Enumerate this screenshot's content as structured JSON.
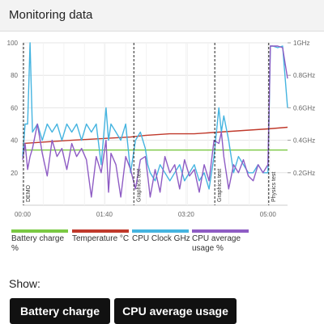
{
  "header": {
    "title": "Monitoring data"
  },
  "chart_data": {
    "type": "line",
    "title": "",
    "x_ticks": [
      "00:00",
      "01:40",
      "03:20",
      "05:00"
    ],
    "y_left_ticks": [
      20,
      40,
      60,
      80,
      100
    ],
    "y_right_ticks": [
      "0.2GHz",
      "0.4GHz",
      "0.6GHz",
      "0.8GHz",
      "1GHz"
    ],
    "ylim_left": [
      0,
      100
    ],
    "ylim_right": [
      0,
      1
    ],
    "grid": true,
    "xlim": [
      0,
      5.4
    ],
    "test_markers": [
      {
        "x": 0.0,
        "label": "DEMO"
      },
      {
        "x": 2.25,
        "label": "Graphics test"
      },
      {
        "x": 3.9,
        "label": "Graphics test"
      },
      {
        "x": 5.0,
        "label": "Physics test"
      }
    ],
    "series": [
      {
        "name": "Battery charge %",
        "color": "#7ac943",
        "x": [
          0,
          5.4
        ],
        "y": [
          34,
          34
        ]
      },
      {
        "name": "Temperature °C",
        "color": "#c0392b",
        "x": [
          0,
          0.5,
          1.0,
          1.6,
          2.2,
          2.5,
          3.0,
          3.5,
          4.0,
          4.5,
          5.0,
          5.4
        ],
        "y": [
          38,
          39,
          40,
          41,
          42,
          43,
          44,
          44,
          45,
          46,
          47,
          48
        ]
      },
      {
        "name": "CPU Clock GHz",
        "color": "#45b4e0",
        "x": [
          0,
          0.05,
          0.1,
          0.15,
          0.2,
          0.3,
          0.4,
          0.5,
          0.6,
          0.7,
          0.8,
          0.9,
          1.0,
          1.1,
          1.2,
          1.3,
          1.4,
          1.5,
          1.6,
          1.7,
          1.75,
          1.8,
          1.9,
          2.0,
          2.1,
          2.2,
          2.3,
          2.4,
          2.5,
          2.55,
          2.6,
          2.7,
          2.8,
          2.9,
          3.0,
          3.1,
          3.2,
          3.3,
          3.4,
          3.5,
          3.6,
          3.7,
          3.8,
          3.9,
          4.0,
          4.05,
          4.1,
          4.2,
          4.3,
          4.4,
          4.5,
          4.6,
          4.7,
          4.8,
          4.9,
          5.0,
          5.05,
          5.1,
          5.2,
          5.3,
          5.4
        ],
        "y": [
          0.3,
          0.5,
          0.5,
          1.0,
          0.45,
          0.5,
          0.4,
          0.5,
          0.45,
          0.5,
          0.4,
          0.5,
          0.45,
          0.5,
          0.4,
          0.5,
          0.45,
          0.5,
          0.25,
          0.6,
          0.4,
          0.5,
          0.45,
          0.4,
          0.5,
          0.2,
          0.4,
          0.45,
          0.35,
          0.25,
          0.2,
          0.15,
          0.25,
          0.2,
          0.15,
          0.2,
          0.25,
          0.15,
          0.2,
          0.25,
          0.15,
          0.2,
          0.1,
          0.3,
          0.6,
          0.45,
          0.55,
          0.4,
          0.2,
          0.3,
          0.25,
          0.2,
          0.2,
          0.25,
          0.2,
          0.2,
          0.98,
          0.98,
          0.97,
          0.98,
          0.6
        ]
      },
      {
        "name": "CPU average usage %",
        "color": "#8e5cc4",
        "x": [
          0,
          0.05,
          0.1,
          0.15,
          0.2,
          0.3,
          0.4,
          0.5,
          0.6,
          0.7,
          0.8,
          0.9,
          1.0,
          1.1,
          1.2,
          1.3,
          1.4,
          1.5,
          1.6,
          1.7,
          1.75,
          1.8,
          1.9,
          2.0,
          2.1,
          2.2,
          2.3,
          2.4,
          2.5,
          2.55,
          2.6,
          2.7,
          2.8,
          2.9,
          3.0,
          3.1,
          3.2,
          3.3,
          3.4,
          3.5,
          3.6,
          3.7,
          3.8,
          3.9,
          4.0,
          4.05,
          4.1,
          4.2,
          4.3,
          4.4,
          4.5,
          4.6,
          4.7,
          4.8,
          4.9,
          5.0,
          5.05,
          5.1,
          5.2,
          5.3,
          5.4
        ],
        "y": [
          28,
          38,
          22,
          30,
          35,
          50,
          32,
          18,
          40,
          30,
          35,
          22,
          38,
          30,
          35,
          28,
          5,
          30,
          20,
          40,
          8,
          32,
          25,
          5,
          30,
          22,
          10,
          28,
          30,
          18,
          5,
          22,
          8,
          30,
          20,
          25,
          10,
          28,
          18,
          22,
          8,
          25,
          15,
          40,
          38,
          45,
          30,
          10,
          25,
          20,
          28,
          18,
          15,
          25,
          20,
          25,
          98,
          98,
          98,
          97,
          78
        ]
      }
    ]
  },
  "legend": {
    "battery": "Battery charge %",
    "temperature": "Temperature °C",
    "cpu_clock": "CPU Clock GHz",
    "cpu_usage": "CPU average usage %"
  },
  "controls": {
    "show_label": "Show:",
    "battery_button": "Battery charge",
    "cpu_usage_button": "CPU average usage"
  }
}
